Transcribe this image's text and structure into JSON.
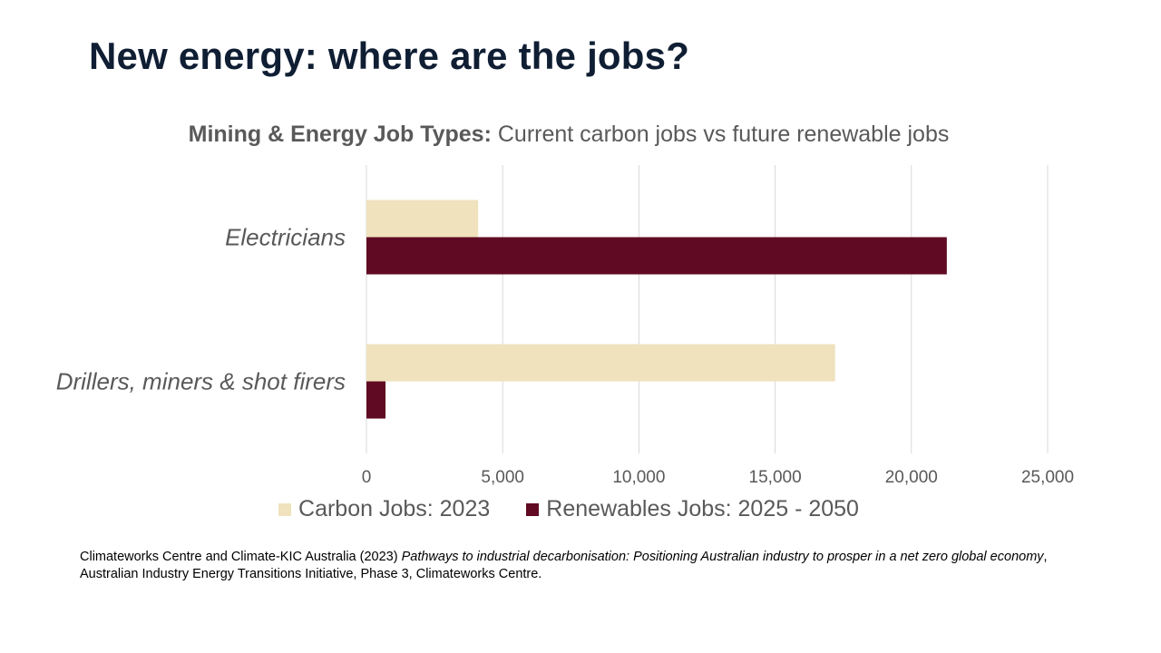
{
  "slide": {
    "title": "New energy: where are the jobs?"
  },
  "chart_data": {
    "type": "bar",
    "orientation": "horizontal",
    "title_bold": "Mining & Energy Job Types:",
    "title_rest": " Current carbon jobs vs future renewable jobs",
    "categories": [
      "Electricians",
      "Drillers, miners & shot firers"
    ],
    "series": [
      {
        "name": "Carbon Jobs: 2023",
        "color": "#efe2bd",
        "values": [
          4100,
          17200
        ]
      },
      {
        "name": "Renewables Jobs: 2025 - 2050",
        "color": "#600a23",
        "values": [
          21300,
          700
        ]
      }
    ],
    "xlim": [
      0,
      25000
    ],
    "x_ticks": [
      0,
      5000,
      10000,
      15000,
      20000,
      25000
    ],
    "x_tick_labels": [
      "0",
      "5,000",
      "10,000",
      "15,000",
      "20,000",
      "25,000"
    ],
    "grid": true,
    "legend_position": "bottom"
  },
  "source": {
    "prefix": "Climateworks Centre and Climate-KIC Australia (2023) ",
    "italic": "Pathways to industrial decarbonisation: Positioning Australian industry to prosper in a net zero global economy",
    "suffix": ", Australian Industry  Energy Transitions Initiative, Phase 3, Climateworks Centre."
  }
}
